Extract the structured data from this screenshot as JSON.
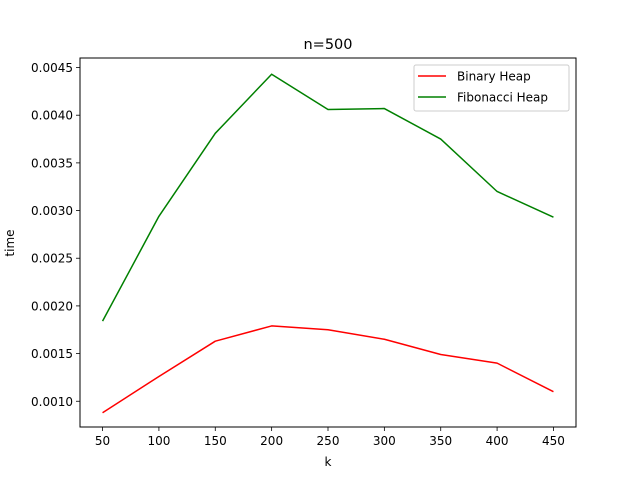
{
  "chart_data": {
    "type": "line",
    "title": "n=500",
    "xlabel": "k",
    "ylabel": "time",
    "x": [
      50,
      100,
      150,
      200,
      250,
      300,
      350,
      400,
      450
    ],
    "xlim": [
      30,
      470
    ],
    "ylim": [
      0.00073,
      0.0046
    ],
    "xticks": [
      50,
      100,
      150,
      200,
      250,
      300,
      350,
      400,
      450
    ],
    "yticks": [
      0.001,
      0.0015,
      0.002,
      0.0025,
      0.003,
      0.0035,
      0.004,
      0.0045
    ],
    "ytick_labels": [
      "0.0010",
      "0.0015",
      "0.0020",
      "0.0025",
      "0.0030",
      "0.0035",
      "0.0040",
      "0.0045"
    ],
    "grid": false,
    "legend_position": "top-right",
    "series": [
      {
        "name": "Binary Heap",
        "color": "#ff0000",
        "values": [
          0.00088,
          0.00126,
          0.00163,
          0.00179,
          0.00175,
          0.00165,
          0.00149,
          0.0014,
          0.0011
        ]
      },
      {
        "name": "Fibonacci Heap",
        "color": "#008000",
        "values": [
          0.00184,
          0.00294,
          0.00381,
          0.00443,
          0.00406,
          0.00407,
          0.00375,
          0.0032,
          0.00293
        ]
      }
    ]
  }
}
